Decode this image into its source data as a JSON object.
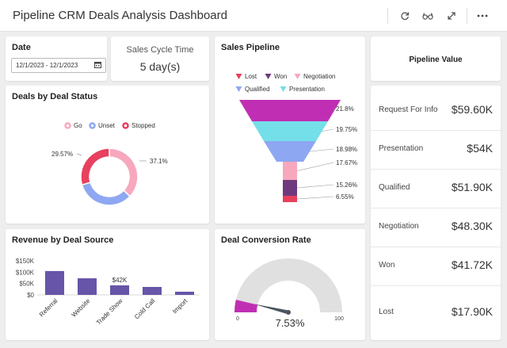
{
  "header": {
    "title": "Pipeline CRM Deals Analysis Dashboard",
    "icons": [
      "refresh-icon",
      "glasses-icon",
      "expand-icon",
      "more-icon"
    ]
  },
  "date_filter": {
    "label": "Date",
    "value": "12/1/2023 - 12/1/2023"
  },
  "sales_cycle": {
    "label": "Sales Cycle Time",
    "value": "5 day(s)"
  },
  "deals_by_status": {
    "title": "Deals by Deal Status",
    "legend": [
      "Go",
      "Unset",
      "Stopped"
    ],
    "labels": [
      "29.57%",
      "37.1%"
    ]
  },
  "sales_pipeline": {
    "title": "Sales Pipeline",
    "legend": [
      "Lost",
      "Won",
      "Negotiation",
      "Qualified",
      "Presentation"
    ],
    "labels": [
      "21.8%",
      "19.75%",
      "18.98%",
      "17.67%",
      "15.26%",
      "6.55%"
    ]
  },
  "pipeline_value": {
    "title": "Pipeline Value",
    "rows": [
      {
        "label": "Request For Info",
        "value": "$59.60K"
      },
      {
        "label": "Presentation",
        "value": "$54K"
      },
      {
        "label": "Qualified",
        "value": "$51.90K"
      },
      {
        "label": "Negotiation",
        "value": "$48.30K"
      },
      {
        "label": "Won",
        "value": "$41.72K"
      },
      {
        "label": "Lost",
        "value": "$17.90K"
      }
    ]
  },
  "revenue_source": {
    "title": "Revenue by Deal Source"
  },
  "conversion": {
    "title": "Deal Conversion Rate",
    "value": "7.53%",
    "min": "0",
    "max": "100"
  },
  "colors": {
    "go": "#f7a8bd",
    "unset": "#8ea7f2",
    "stopped": "#e8405e",
    "purple": "#6655a8",
    "magenta": "#c02fb3",
    "cyan": "#74dfe8",
    "periwinkle": "#8ea7f2",
    "pink": "#f7a8bd",
    "lost": "#e8405e",
    "won": "#6e3a7d",
    "gauge_bg": "#e0e0e0"
  },
  "chart_data": [
    {
      "type": "pie",
      "title": "Deals by Deal Status",
      "categories": [
        "Go",
        "Unset",
        "Stopped"
      ],
      "values": [
        37.1,
        33.33,
        29.57
      ]
    },
    {
      "type": "funnel",
      "title": "Sales Pipeline",
      "categories": [
        "Request For Info",
        "Presentation",
        "Qualified",
        "Negotiation",
        "Won",
        "Lost"
      ],
      "values": [
        21.8,
        19.75,
        18.98,
        17.67,
        15.26,
        6.55
      ]
    },
    {
      "type": "bar",
      "title": "Revenue by Deal Source",
      "categories": [
        "Referral",
        "Website",
        "Trade Show",
        "Cold Call",
        "Import"
      ],
      "values": [
        105000,
        73000,
        42000,
        35000,
        14000
      ],
      "data_labels": [
        null,
        null,
        "$42K",
        null,
        null
      ],
      "ylim": [
        0,
        150000
      ],
      "yticks": [
        "$0",
        "$50K",
        "$100K",
        "$150K"
      ]
    },
    {
      "type": "gauge",
      "title": "Deal Conversion Rate",
      "value": 7.53,
      "range": [
        0,
        100
      ]
    }
  ]
}
